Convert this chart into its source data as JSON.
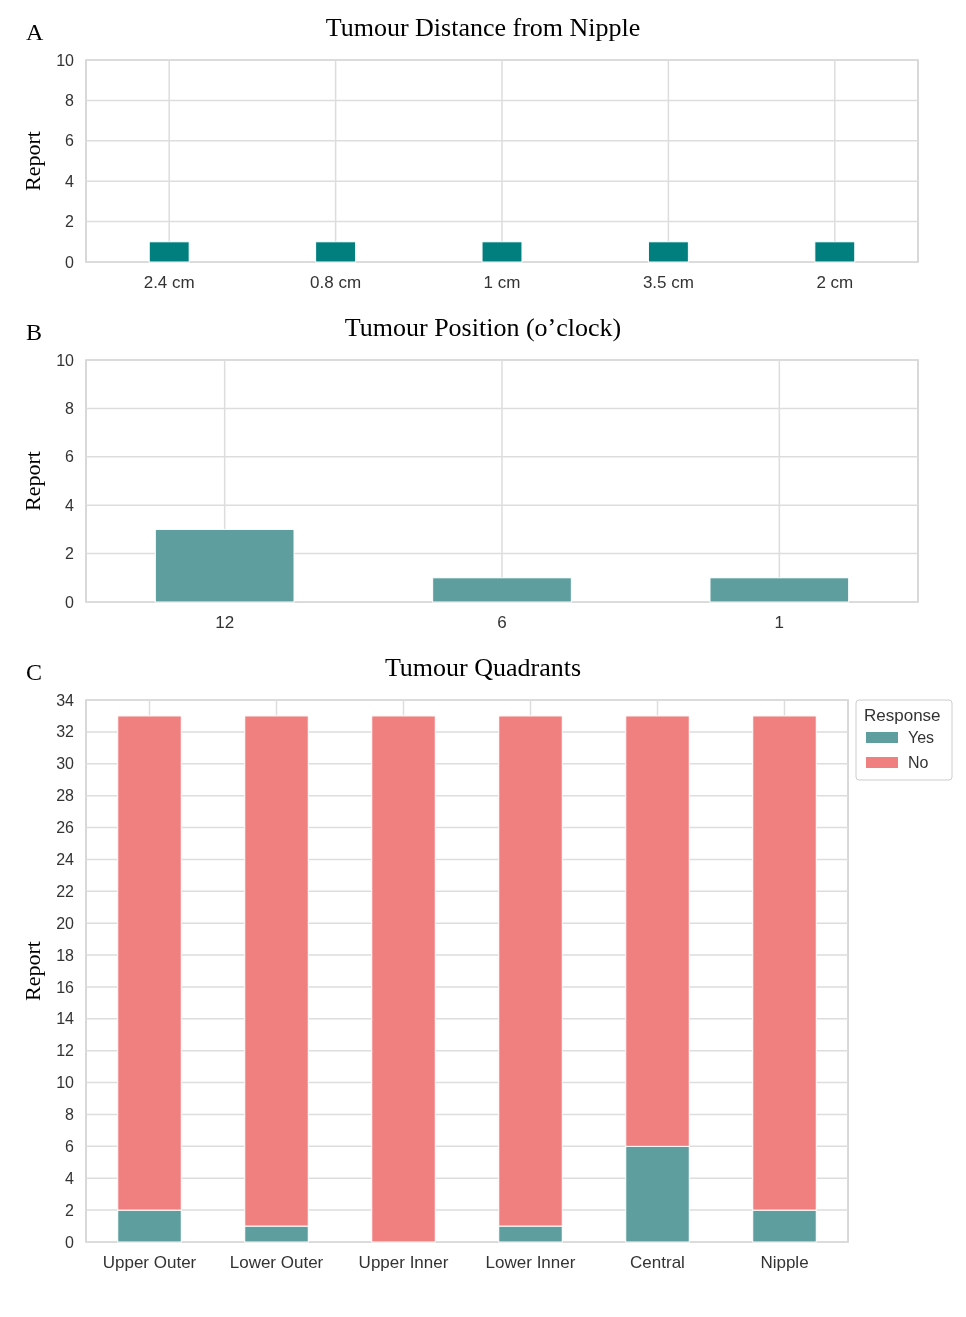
{
  "chart_data": [
    {
      "type": "bar",
      "title": "Tumour Distance from Nipple",
      "ylabel": "Report",
      "annotations": [
        "A"
      ],
      "categories": [
        "2.4 cm",
        "0.8 cm",
        "1 cm",
        "3.5 cm",
        "2 cm"
      ],
      "values": [
        1,
        1,
        1,
        1,
        1
      ],
      "color": "#007f7f",
      "ylim": [
        0,
        10
      ],
      "yticks": [
        0,
        2,
        4,
        6,
        8,
        10
      ],
      "grid": true
    },
    {
      "type": "bar",
      "title": "Tumour Position (o’clock)",
      "ylabel": "Report",
      "annotations": [
        "B"
      ],
      "categories": [
        "12",
        "6",
        "1"
      ],
      "values": [
        3,
        1,
        1
      ],
      "color": "#5f9e9e",
      "ylim": [
        0,
        10
      ],
      "yticks": [
        0,
        2,
        4,
        6,
        8,
        10
      ],
      "grid": true
    },
    {
      "type": "bar",
      "title": "Tumour Quadrants",
      "ylabel": "Report",
      "annotations": [
        "C"
      ],
      "categories": [
        "Upper Outer",
        "Lower Outer",
        "Upper Inner",
        "Lower Inner",
        "Central",
        "Nipple"
      ],
      "stacked": true,
      "legend": "top right",
      "legend_title": "Response",
      "series": [
        {
          "name": "Yes",
          "color": "#5f9e9e",
          "values": [
            2,
            1,
            0,
            1,
            6,
            2
          ]
        },
        {
          "name": "No",
          "color": "#f08080",
          "values": [
            31,
            32,
            33,
            32,
            27,
            31
          ]
        }
      ],
      "ylim": [
        0,
        34
      ],
      "yticks": [
        0,
        2,
        4,
        6,
        8,
        10,
        12,
        14,
        16,
        18,
        20,
        22,
        24,
        26,
        28,
        30,
        32,
        34
      ],
      "grid": true
    }
  ]
}
